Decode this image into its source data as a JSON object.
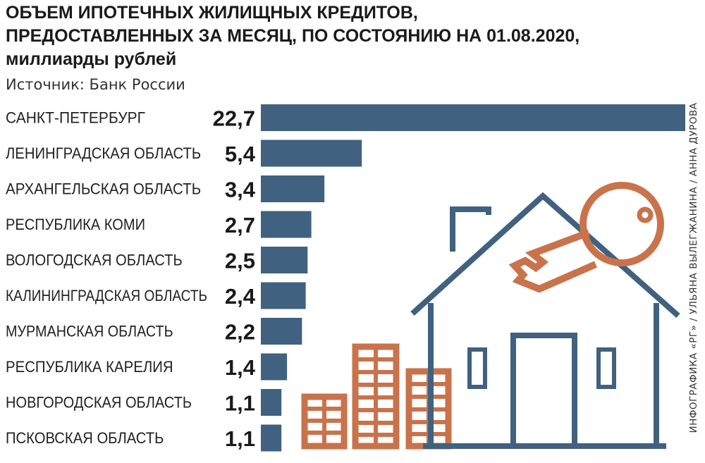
{
  "header": {
    "title_lines": [
      "ОБЪЕМ ИПОТЕЧНЫХ ЖИЛИЩНЫХ КРЕДИТОВ,",
      "ПРЕДОСТАВЛЕННЫХ ЗА МЕСЯЦ, ПО СОСТОЯНИЮ НА 01.08.2020,",
      "миллиарды рублей"
    ],
    "source": "Источник: Банк России",
    "credit": "ИНФОГРАФИКА «РГ» / УЛЬЯНА ВЫЛЕГЖАНИНА / АННА ДУРОВА"
  },
  "colors": {
    "bar": "#40617f",
    "illustration_outline": "#40617f",
    "illustration_accent": "#c8734b",
    "text": "#1a1a1a"
  },
  "illustration": {
    "house_icon": "house-outline",
    "key_icon": "key",
    "buildings_icon": "apartment-buildings"
  },
  "chart_data": {
    "type": "bar",
    "orientation": "horizontal",
    "title": "ОБЪЕМ ИПОТЕЧНЫХ ЖИЛИЩНЫХ КРЕДИТОВ, ПРЕДОСТАВЛЕННЫХ ЗА МЕСЯЦ, ПО СОСТОЯНИЮ НА 01.08.2020, миллиарды рублей",
    "unit": "миллиарды рублей",
    "categories": [
      "САНКТ-ПЕТЕРБУРГ",
      "ЛЕНИНГРАДСКАЯ ОБЛАСТЬ",
      "АРХАНГЕЛЬСКАЯ ОБЛАСТЬ",
      "РЕСПУБЛИКА КОМИ",
      "ВОЛОГОДСКАЯ ОБЛАСТЬ",
      "КАЛИНИНГРАДСКАЯ ОБЛАСТЬ",
      "МУРМАНСКАЯ ОБЛАСТЬ",
      "РЕСПУБЛИКА КАРЕЛИЯ",
      "НОВГОРОДСКАЯ ОБЛАСТЬ",
      "ПСКОВСКАЯ ОБЛАСТЬ"
    ],
    "values": [
      22.7,
      5.4,
      3.4,
      2.7,
      2.5,
      2.4,
      2.2,
      1.4,
      1.1,
      1.1
    ],
    "value_labels": [
      "22,7",
      "5,4",
      "3,4",
      "2,7",
      "2,5",
      "2,4",
      "2,2",
      "1,4",
      "1,1",
      "1,1"
    ],
    "xlim": [
      0,
      22.7
    ],
    "grid": false,
    "legend": "none"
  }
}
